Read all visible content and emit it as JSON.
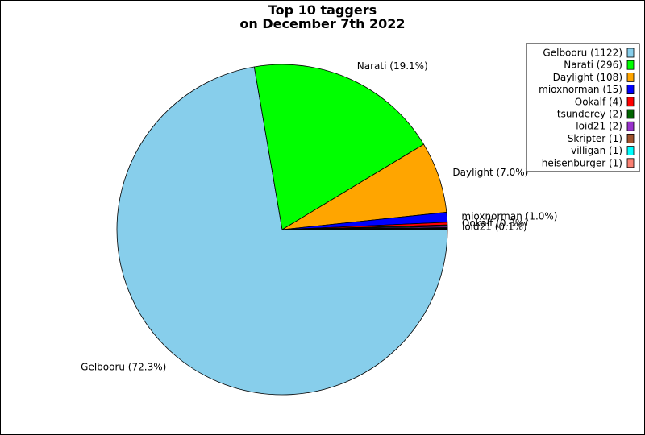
{
  "chart_data": {
    "type": "pie",
    "title_lines": [
      "Top 10 taggers",
      "on December 7th 2022"
    ],
    "legend_placement": "top-right",
    "slices": [
      {
        "name": "Gelbooru",
        "value": 1122,
        "color": "#87ceeb",
        "legend": "Gelbooru (1122)",
        "label": "Gelbooru (72.3%)"
      },
      {
        "name": "Narati",
        "value": 296,
        "color": "#00ff00",
        "legend": "Narati (296)",
        "label": "Narati (19.1%)"
      },
      {
        "name": "Daylight",
        "value": 108,
        "color": "#ffa500",
        "legend": "Daylight (108)",
        "label": "Daylight (7.0%)"
      },
      {
        "name": "mioxnorman",
        "value": 15,
        "color": "#0000ff",
        "legend": "mioxnorman (15)",
        "label": "mioxnorman (1.0%)"
      },
      {
        "name": "Ookalf",
        "value": 4,
        "color": "#ff0000",
        "legend": "Ookalf (4)",
        "label": "Ookalf (0.3%)"
      },
      {
        "name": "tsunderey",
        "value": 2,
        "color": "#006400",
        "legend": "tsunderey (2)",
        "label": ""
      },
      {
        "name": "loid21",
        "value": 2,
        "color": "#9932cc",
        "legend": "loid21 (2)",
        "label": "loid21 (0.1%)"
      },
      {
        "name": "Skripter",
        "value": 1,
        "color": "#a0522d",
        "legend": "Skripter (1)",
        "label": ""
      },
      {
        "name": "villigan",
        "value": 1,
        "color": "#00ffff",
        "legend": "villigan (1)",
        "label": ""
      },
      {
        "name": "heisenburger",
        "value": 1,
        "color": "#fa8072",
        "legend": "heisenburger (1)",
        "label": ""
      }
    ]
  }
}
